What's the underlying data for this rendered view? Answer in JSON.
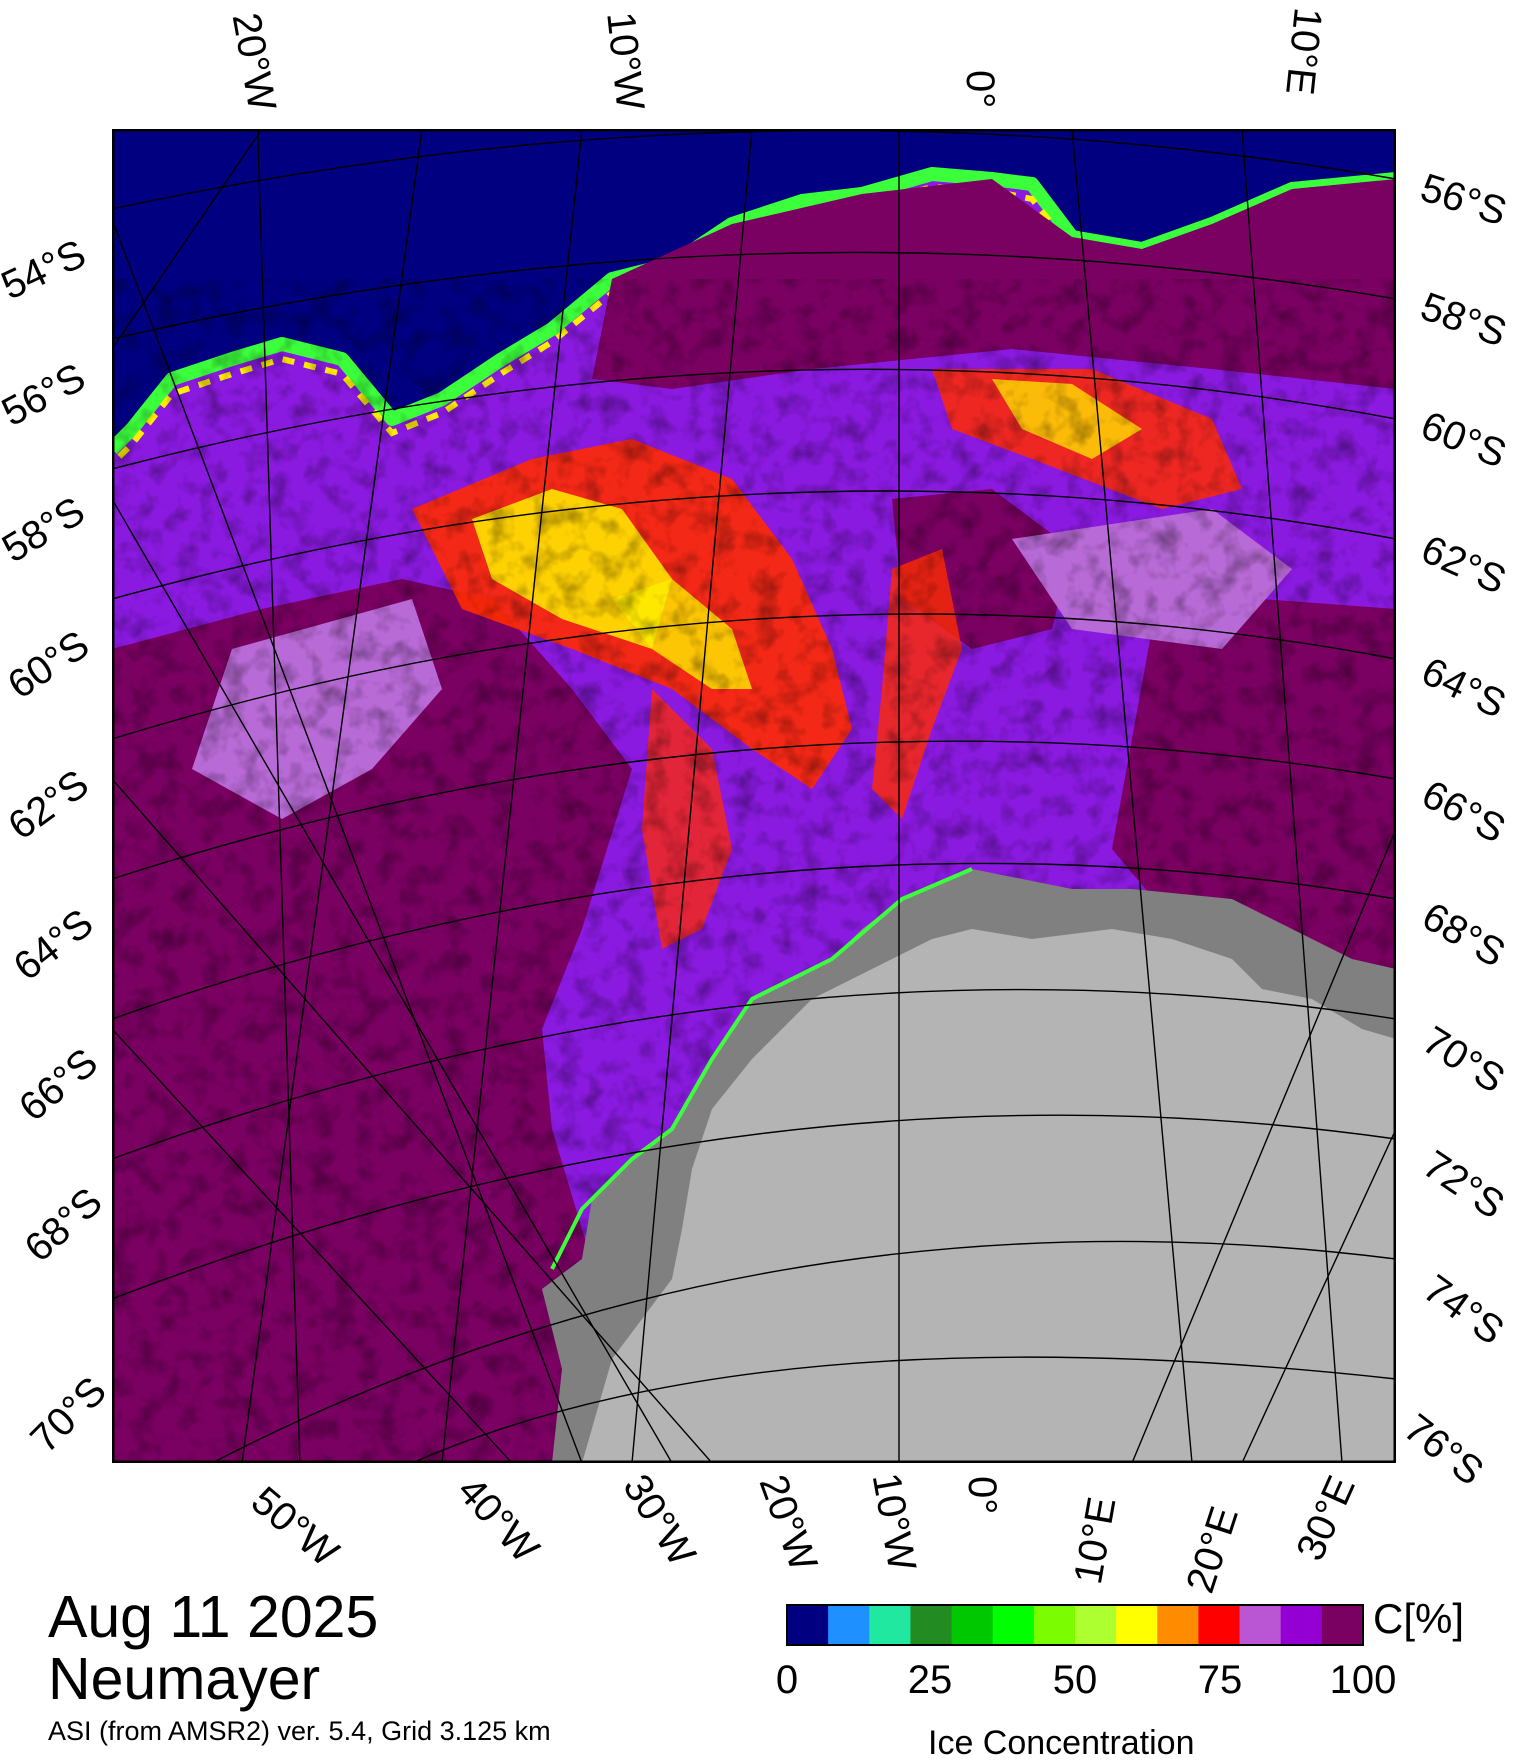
{
  "map": {
    "top_lon_labels": [
      "20°W",
      "10°W",
      "0°",
      "10°E"
    ],
    "bottom_lon_labels": [
      "50°W",
      "40°W",
      "30°W",
      "20°W",
      "10°W",
      "0°",
      "10°E",
      "20°E",
      "30°E"
    ],
    "left_lat_labels": [
      "54°S",
      "56°S",
      "58°S",
      "60°S",
      "62°S",
      "64°S",
      "66°S",
      "68°S",
      "70°S"
    ],
    "right_lat_labels": [
      "56°S",
      "58°S",
      "60°S",
      "62°S",
      "64°S",
      "66°S",
      "68°S",
      "70°S",
      "72°S",
      "74°S",
      "76°S"
    ],
    "colors": {
      "open_water": "#000080",
      "ice_high": "#7a0062",
      "ice_mid": "#8a1ae0",
      "ice_light": "#b86ad6",
      "red": "#ff2a00",
      "yellow": "#ffee00",
      "green": "#3cff3c",
      "land": "#b4b4b4",
      "ice_shelf": "#808080",
      "grid": "#000000"
    }
  },
  "title": {
    "date": "Aug 11 2025",
    "station": "Neumayer",
    "source": "ASI (from AMSR2) ver. 5.4,  Grid 3.125 km"
  },
  "colorbar": {
    "unit": "C[%]",
    "title": "Ice Concentration",
    "ticks": [
      "0",
      "25",
      "50",
      "75",
      "100"
    ],
    "colors": [
      "#000080",
      "#1e90ff",
      "#20e8a0",
      "#228b22",
      "#00c800",
      "#00ff00",
      "#7cfc00",
      "#adff2f",
      "#ffff00",
      "#ff8c00",
      "#ff0000",
      "#ba55d3",
      "#9400d3",
      "#7a0062"
    ]
  }
}
